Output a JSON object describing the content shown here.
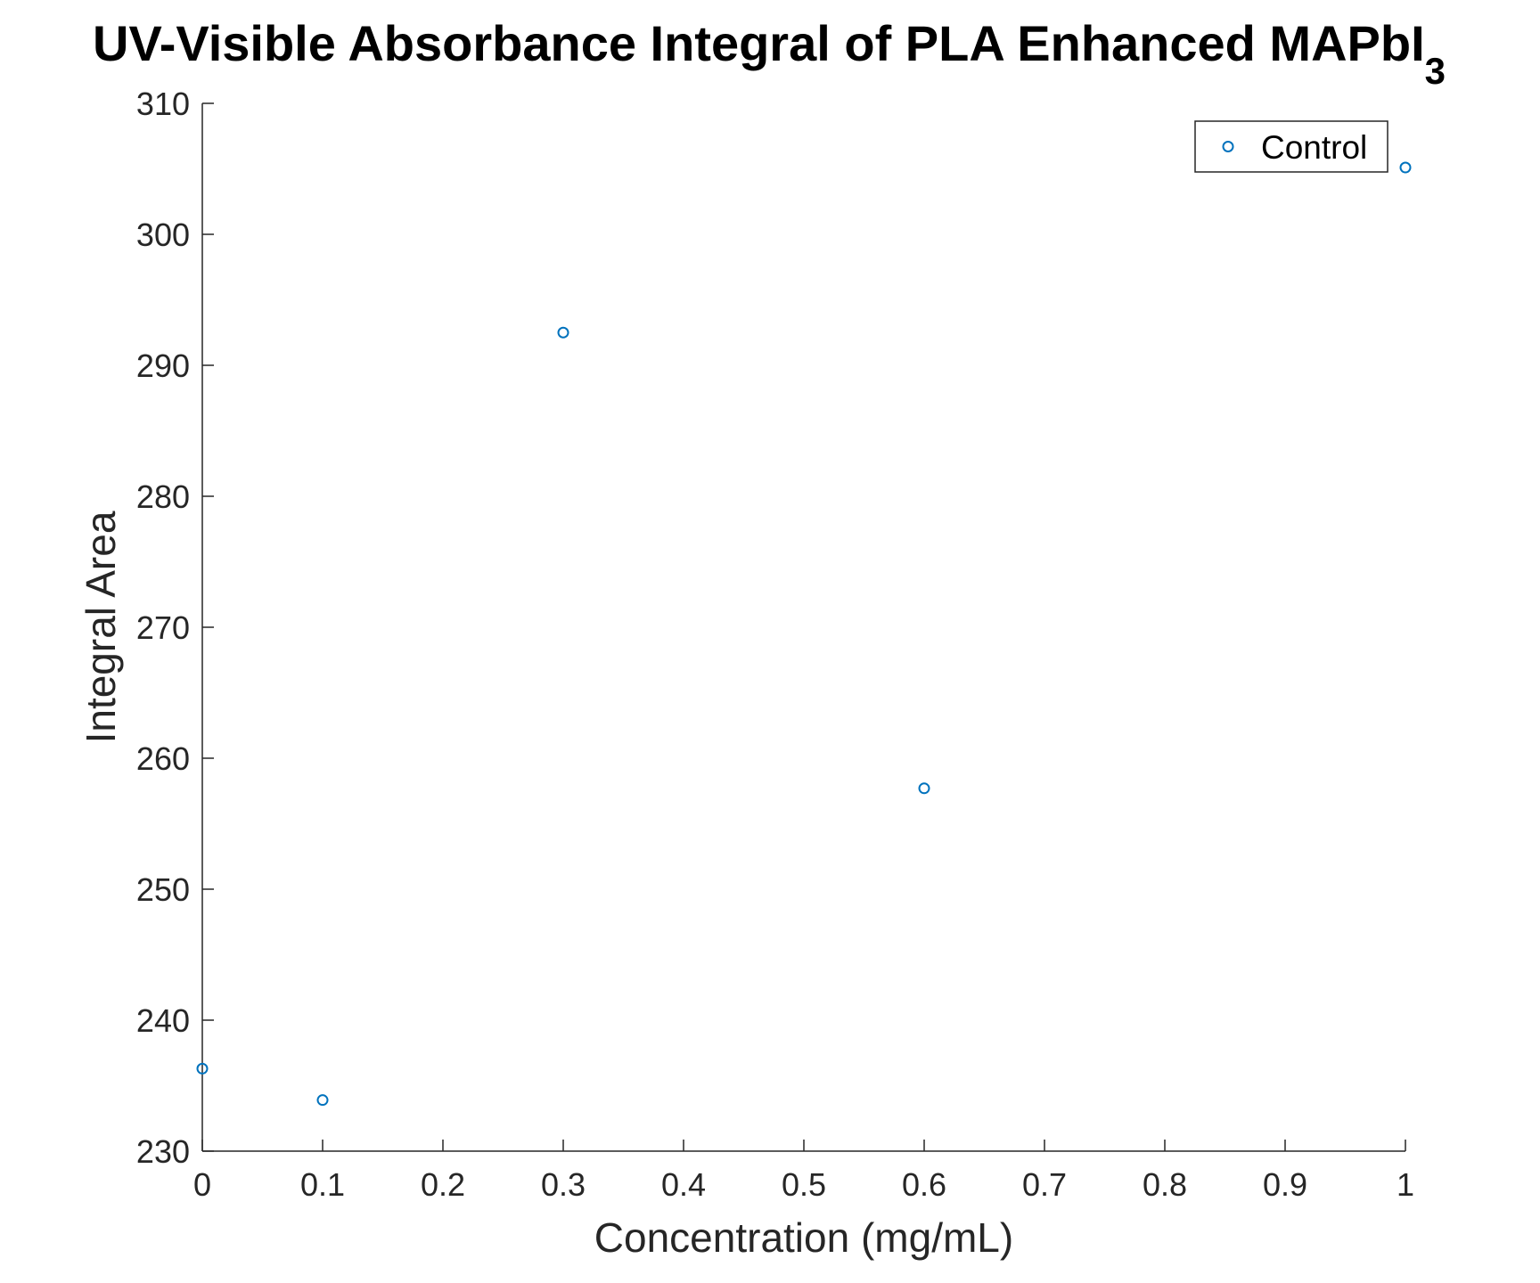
{
  "chart_data": {
    "type": "scatter",
    "title": "UV-Visible Absorbance Integral of PLA Enhanced MAPbI",
    "title_subscript": "3",
    "xlabel": "Concentration (mg/mL)",
    "ylabel": "Integral Area",
    "xlim": [
      0,
      1
    ],
    "ylim": [
      230,
      310
    ],
    "xticks": [
      "0",
      "0.1",
      "0.2",
      "0.3",
      "0.4",
      "0.5",
      "0.6",
      "0.7",
      "0.8",
      "0.9",
      "1"
    ],
    "yticks": [
      "230",
      "240",
      "250",
      "260",
      "270",
      "280",
      "290",
      "300",
      "310"
    ],
    "grid": false,
    "legend_position": "top-right",
    "series": [
      {
        "name": "Control",
        "marker": "circle-open",
        "color": "#0072BD",
        "x": [
          0,
          0.1,
          0.3,
          0.6,
          1
        ],
        "y": [
          236.3,
          233.9,
          292.5,
          257.7,
          305.1
        ]
      }
    ]
  }
}
